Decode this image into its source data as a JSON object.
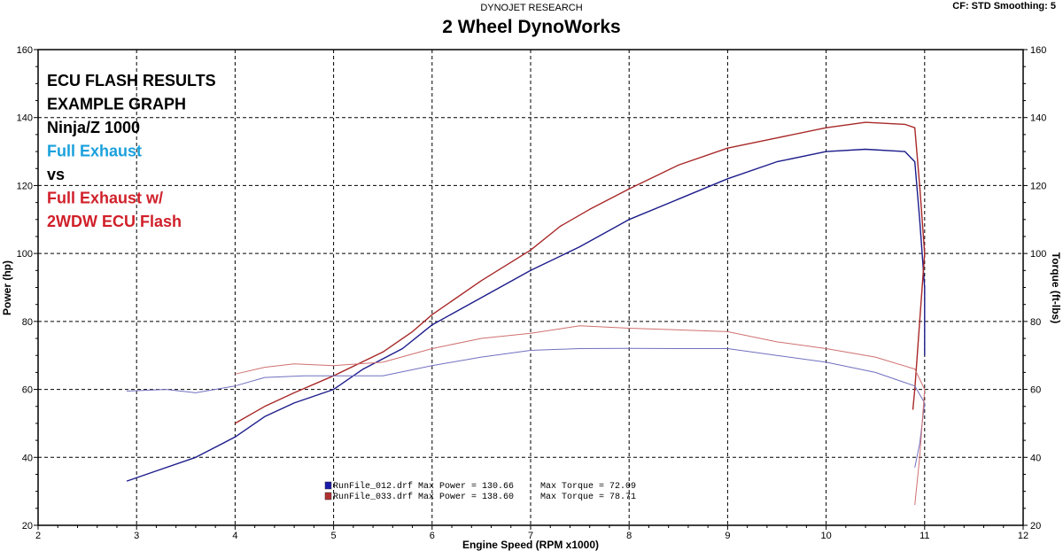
{
  "header": {
    "brand": "DYNOJET RESEARCH",
    "shop": "2 Wheel DynoWorks",
    "settings": "CF: STD  Smoothing: 5"
  },
  "annotation_lines": [
    {
      "text": "ECU FLASH RESULTS",
      "color": "#000000"
    },
    {
      "text": "EXAMPLE GRAPH",
      "color": "#000000"
    },
    {
      "text": "Ninja/Z 1000",
      "color": "#000000"
    },
    {
      "text": "Full Exhaust",
      "color": "#1aa0dc"
    },
    {
      "text": "vs",
      "color": "#000000"
    },
    {
      "text": "Full Exhaust w/",
      "color": "#d0202a"
    },
    {
      "text": "2WDW ECU Flash",
      "color": "#d0202a"
    }
  ],
  "legend_rows": [
    {
      "text": "RunFile_012.drf Max Power = 130.66     Max Torque = 72.09",
      "color": "#1a1aaa"
    },
    {
      "text": "RunFile_033.drf Max Power = 138.60     Max Torque = 78.71",
      "color": "#b03030"
    }
  ],
  "chart_data": {
    "type": "line",
    "xlabel": "Engine Speed (RPM x1000)",
    "ylabel": "Power (hp)",
    "y2label": "Torque (ft-lbs)",
    "xlim": [
      2,
      12
    ],
    "ylim": [
      20,
      160
    ],
    "y2lim": [
      20,
      160
    ],
    "x_ticks": [
      2,
      3,
      4,
      5,
      6,
      7,
      8,
      9,
      10,
      11,
      12
    ],
    "y_ticks": [
      20,
      40,
      60,
      80,
      100,
      120,
      140,
      160
    ],
    "grid": true,
    "series": [
      {
        "name": "RunFile_012.drf",
        "measure": "power",
        "color": "#1c1c8c",
        "points": [
          [
            2.9,
            33
          ],
          [
            3.2,
            36
          ],
          [
            3.6,
            40
          ],
          [
            4.0,
            46
          ],
          [
            4.3,
            52
          ],
          [
            4.6,
            56
          ],
          [
            5.0,
            60
          ],
          [
            5.3,
            66
          ],
          [
            5.7,
            72
          ],
          [
            6.0,
            79
          ],
          [
            6.5,
            87
          ],
          [
            7.0,
            95
          ],
          [
            7.5,
            102
          ],
          [
            8.0,
            110
          ],
          [
            8.5,
            116
          ],
          [
            9.0,
            122
          ],
          [
            9.5,
            127
          ],
          [
            10.0,
            130
          ],
          [
            10.4,
            130.66
          ],
          [
            10.8,
            130
          ],
          [
            10.9,
            127
          ],
          [
            10.95,
            110
          ],
          [
            11.0,
            90
          ],
          [
            11.0,
            70
          ]
        ]
      },
      {
        "name": "RunFile_033.drf",
        "measure": "power",
        "color": "#a82828",
        "points": [
          [
            4.0,
            50
          ],
          [
            4.3,
            55
          ],
          [
            4.6,
            59
          ],
          [
            5.0,
            64
          ],
          [
            5.5,
            71
          ],
          [
            5.8,
            77
          ],
          [
            6.0,
            82
          ],
          [
            6.5,
            92
          ],
          [
            7.0,
            101
          ],
          [
            7.3,
            108
          ],
          [
            7.6,
            113
          ],
          [
            8.0,
            119
          ],
          [
            8.5,
            126
          ],
          [
            9.0,
            131
          ],
          [
            9.5,
            134
          ],
          [
            10.0,
            137
          ],
          [
            10.4,
            138.6
          ],
          [
            10.8,
            138
          ],
          [
            10.9,
            137
          ],
          [
            10.95,
            120
          ],
          [
            11.0,
            100
          ],
          [
            10.95,
            80
          ],
          [
            10.9,
            60
          ],
          [
            10.88,
            54
          ]
        ]
      },
      {
        "name": "RunFile_012.drf",
        "measure": "torque",
        "color": "#7070c0",
        "points": [
          [
            2.9,
            59.5
          ],
          [
            3.3,
            60
          ],
          [
            3.6,
            59
          ],
          [
            4.0,
            61
          ],
          [
            4.3,
            63.5
          ],
          [
            4.7,
            64
          ],
          [
            5.0,
            64
          ],
          [
            5.5,
            64
          ],
          [
            6.0,
            67
          ],
          [
            6.5,
            69.5
          ],
          [
            7.0,
            71.5
          ],
          [
            7.5,
            72
          ],
          [
            8.0,
            72.09
          ],
          [
            8.5,
            72
          ],
          [
            9.0,
            72
          ],
          [
            9.5,
            70
          ],
          [
            10.0,
            68
          ],
          [
            10.5,
            65
          ],
          [
            10.9,
            61
          ],
          [
            11.0,
            56
          ],
          [
            10.95,
            44
          ],
          [
            10.9,
            37
          ]
        ]
      },
      {
        "name": "RunFile_033.drf",
        "measure": "torque",
        "color": "#d07070",
        "points": [
          [
            4.0,
            64.5
          ],
          [
            4.3,
            66.5
          ],
          [
            4.6,
            67.5
          ],
          [
            5.0,
            67
          ],
          [
            5.5,
            68
          ],
          [
            6.0,
            72
          ],
          [
            6.5,
            75
          ],
          [
            7.0,
            76.5
          ],
          [
            7.5,
            78.71
          ],
          [
            8.0,
            78
          ],
          [
            8.5,
            77.5
          ],
          [
            9.0,
            77
          ],
          [
            9.5,
            74
          ],
          [
            10.0,
            72
          ],
          [
            10.5,
            69.5
          ],
          [
            10.9,
            66
          ],
          [
            11.0,
            60
          ],
          [
            10.95,
            40
          ],
          [
            10.9,
            26
          ]
        ]
      }
    ]
  }
}
